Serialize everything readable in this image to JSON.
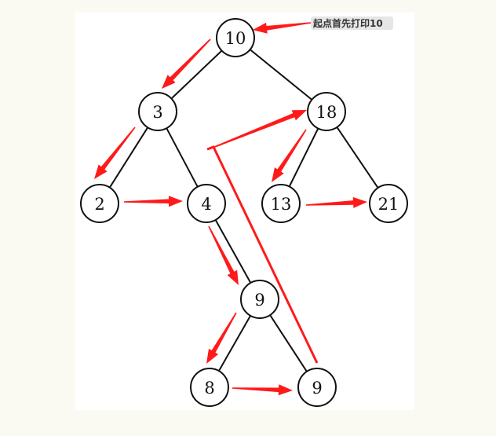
{
  "colors": {
    "arrow": "#ff1a1a",
    "node_stroke": "#111111",
    "background": "#fbfaf2",
    "canvas": "#ffffff"
  },
  "tree": {
    "nodes": [
      {
        "id": "n10",
        "label": "10"
      },
      {
        "id": "n3",
        "label": "3"
      },
      {
        "id": "n18",
        "label": "18"
      },
      {
        "id": "n2",
        "label": "2"
      },
      {
        "id": "n4",
        "label": "4"
      },
      {
        "id": "n13",
        "label": "13"
      },
      {
        "id": "n21",
        "label": "21"
      },
      {
        "id": "n9a",
        "label": "9"
      },
      {
        "id": "n8",
        "label": "8"
      },
      {
        "id": "n9b",
        "label": "9"
      }
    ],
    "edges": [
      [
        "n10",
        "n3"
      ],
      [
        "n10",
        "n18"
      ],
      [
        "n3",
        "n2"
      ],
      [
        "n3",
        "n4"
      ],
      [
        "n18",
        "n13"
      ],
      [
        "n18",
        "n21"
      ],
      [
        "n4",
        "n9a"
      ],
      [
        "n9a",
        "n8"
      ],
      [
        "n9a",
        "n9b"
      ]
    ]
  },
  "callout": {
    "text": "起点首先打印10"
  },
  "traversal_arrows": [
    {
      "from": "callout",
      "to": "n10"
    },
    {
      "from": "n10",
      "to": "n3"
    },
    {
      "from": "n3",
      "to": "n2"
    },
    {
      "from": "n2",
      "to": "n4"
    },
    {
      "from": "n4",
      "to": "n9a"
    },
    {
      "from": "n9a",
      "to": "n8"
    },
    {
      "from": "n8",
      "to": "n9b"
    },
    {
      "from": "n9b",
      "to": "n18"
    },
    {
      "from": "n18",
      "to": "n13"
    },
    {
      "from": "n13",
      "to": "n21"
    }
  ]
}
